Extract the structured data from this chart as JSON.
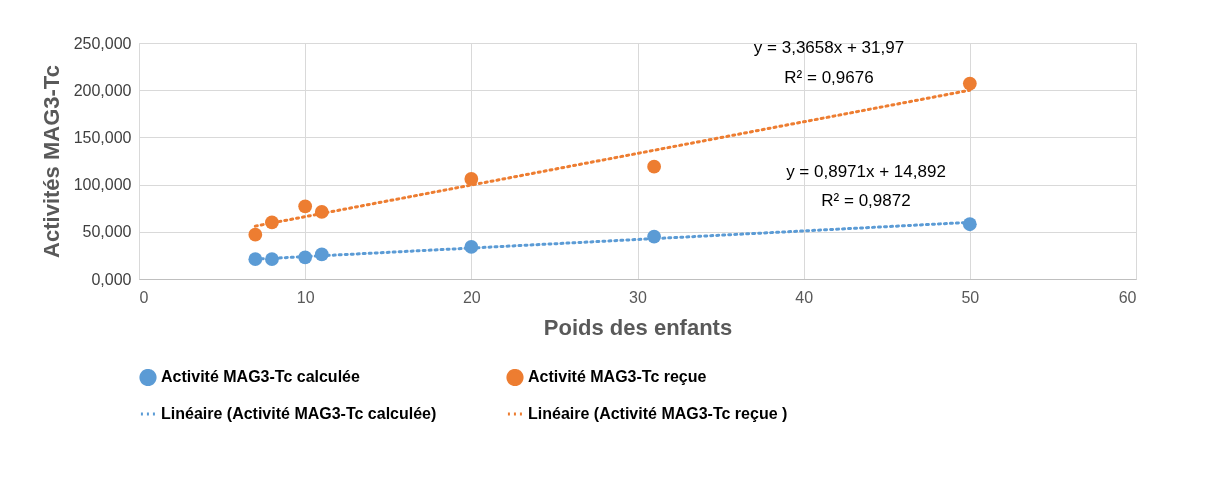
{
  "chart_data": {
    "type": "scatter",
    "xlabel": "Poids des enfants",
    "ylabel": "Activités MAG3-Tc",
    "xlim": [
      0,
      60
    ],
    "xticks": [
      0,
      10,
      20,
      30,
      40,
      50,
      60
    ],
    "ylim": [
      0,
      250
    ],
    "yticks": [
      {
        "value": 0,
        "label": "0,000"
      },
      {
        "value": 50,
        "label": "50,000"
      },
      {
        "value": 100,
        "label": "100,000"
      },
      {
        "value": 150,
        "label": "150,000"
      },
      {
        "value": 200,
        "label": "200,000"
      },
      {
        "value": 250,
        "label": "250,000"
      }
    ],
    "grid": true,
    "legend": "bottom",
    "series": [
      {
        "name": "Activité  MAG3-Tc calculée",
        "marker": "circle",
        "color": "#5b9bd5",
        "x": [
          7,
          8,
          10,
          11,
          20,
          31,
          50
        ],
        "values": [
          21,
          21,
          23,
          26,
          34,
          45,
          58
        ]
      },
      {
        "name": "Activité MAG3-Tc reçue",
        "marker": "circle",
        "color": "#ed7d31",
        "x": [
          7,
          8,
          10,
          11,
          20,
          31,
          50
        ],
        "values": [
          47,
          60,
          77,
          71,
          106,
          119,
          207
        ]
      },
      {
        "name": "Linéaire (Activité  MAG3-Tc calculée)",
        "type": "line",
        "marker": "none",
        "line_style": "dotted",
        "color": "#5b9bd5",
        "x": [
          7,
          50
        ],
        "values": [
          21,
          60
        ]
      },
      {
        "name": "Linéaire (Activité MAG3-Tc reçue )",
        "type": "line",
        "marker": "none",
        "line_style": "dotted",
        "color": "#ed7d31",
        "x": [
          7,
          50
        ],
        "values": [
          56,
          200
        ]
      }
    ],
    "annotations": [
      "y = 3,3658x + 31,97",
      "R² = 0,9676",
      "y = 0,8971x + 14,892",
      "R² = 0,9872"
    ]
  }
}
